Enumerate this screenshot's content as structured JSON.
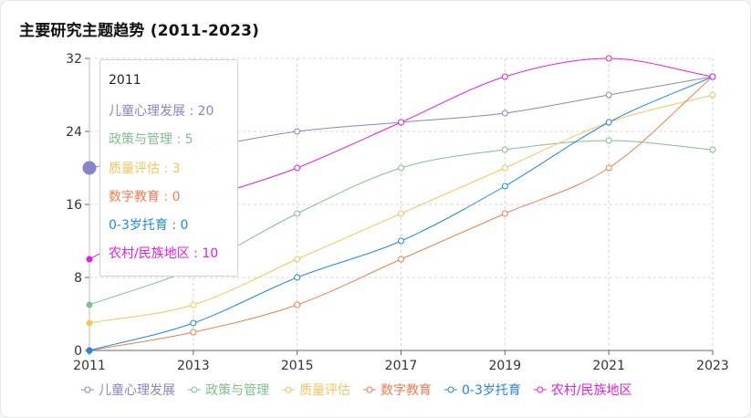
{
  "title": "主要研究主题趋势 (2011-2023)",
  "chart_data": {
    "type": "line",
    "title": "主要研究主题趋势 (2011-2023)",
    "xlabel": "",
    "ylabel": "",
    "x": [
      "2011",
      "2013",
      "2015",
      "2017",
      "2019",
      "2021",
      "2023"
    ],
    "ylim": [
      0,
      32
    ],
    "yticks": [
      0,
      8,
      16,
      24,
      32
    ],
    "grid": true,
    "legend": "bottom",
    "series": [
      {
        "name": "儿童心理发展",
        "color": "#8a83c9",
        "values": [
          20,
          22,
          24,
          25,
          26,
          28,
          30
        ]
      },
      {
        "name": "政策与管理",
        "color": "#7fc08d",
        "values": [
          5,
          9,
          15,
          20,
          22,
          23,
          22
        ]
      },
      {
        "name": "质量评估",
        "color": "#f7c35a",
        "values": [
          3,
          5,
          10,
          15,
          20,
          25,
          28
        ]
      },
      {
        "name": "数字教育",
        "color": "#ee7d4f",
        "values": [
          0,
          2,
          5,
          10,
          15,
          20,
          30
        ]
      },
      {
        "name": "0-3岁托育",
        "color": "#1f87e6",
        "values": [
          0,
          3,
          8,
          12,
          18,
          25,
          30
        ]
      },
      {
        "name": "农村/民族地区",
        "color": "#e61ee0",
        "values": [
          10,
          16,
          20,
          25,
          30,
          32,
          30
        ]
      }
    ]
  },
  "tooltip": {
    "title": "2011",
    "rows": [
      {
        "label": "儿童心理发展 : 20",
        "color": "#8a83c9"
      },
      {
        "label": "政策与管理 : 5",
        "color": "#7fc08d"
      },
      {
        "label": "质量评估 : 3",
        "color": "#f7c35a"
      },
      {
        "label": "数字教育 : 0",
        "color": "#ee7d4f"
      },
      {
        "label": "0-3岁托育 : 0",
        "color": "#1f87e6"
      },
      {
        "label": "农村/民族地区 : 10",
        "color": "#e61ee0"
      }
    ]
  }
}
